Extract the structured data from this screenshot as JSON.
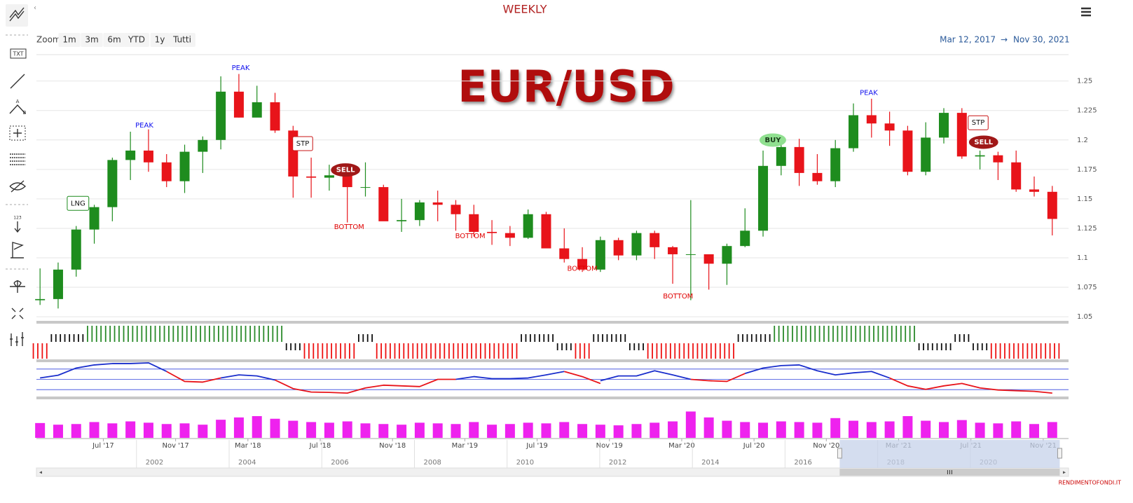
{
  "header": {
    "title": "WEEKLY",
    "zoom_label": "Zoom",
    "zoom_buttons": [
      "1m",
      "3m",
      "6m",
      "YTD",
      "1y",
      "Tutti"
    ],
    "date_from": "Mar 12, 2017",
    "arrow": "→",
    "date_to": "Nov 30, 2021"
  },
  "toolbar": {
    "collapse": "‹",
    "txt": "TXT",
    "num": "123",
    "a": "A",
    "b": "B"
  },
  "watermark": "EUR/USD",
  "footer": "RENDIMENTOFONDI.IT",
  "chart_data": [
    {
      "type": "candlestick",
      "up_color": "#1e8c1e",
      "down_color": "#e8141a",
      "grid": true,
      "xlim": [
        0.3,
        57.4
      ],
      "ylim": [
        1.0465,
        1.2724
      ],
      "yticks": [
        1.05,
        1.075,
        1.1,
        1.125,
        1.15,
        1.175,
        1.2,
        1.225,
        1.25
      ],
      "xticks": [
        {
          "value": 4,
          "label": "Jul '17"
        },
        {
          "value": 8,
          "label": "Nov '17"
        },
        {
          "value": 12,
          "label": "Mar '18"
        },
        {
          "value": 16,
          "label": "Jul '18"
        },
        {
          "value": 20,
          "label": "Nov '18"
        },
        {
          "value": 24,
          "label": "Mar '19"
        },
        {
          "value": 28,
          "label": "Jul '19"
        },
        {
          "value": 32,
          "label": "Nov '19"
        },
        {
          "value": 36,
          "label": "Mar '20"
        },
        {
          "value": 40,
          "label": "Jul '20"
        },
        {
          "value": 44,
          "label": "Nov '20"
        },
        {
          "value": 48,
          "label": "Mar '21"
        },
        {
          "value": 52,
          "label": "Jul '21"
        },
        {
          "value": 56,
          "label": "Nov '21"
        }
      ],
      "open": [
        1.064,
        1.065,
        1.09,
        1.124,
        1.143,
        1.183,
        1.191,
        1.181,
        1.165,
        1.19,
        1.2,
        1.241,
        1.219,
        1.232,
        1.208,
        1.169,
        1.168,
        1.17,
        1.16,
        1.16,
        1.131,
        1.132,
        1.147,
        1.145,
        1.137,
        1.122,
        1.121,
        1.117,
        1.137,
        1.108,
        1.099,
        1.09,
        1.115,
        1.102,
        1.121,
        1.109,
        1.103,
        1.103,
        1.095,
        1.11,
        1.123,
        1.178,
        1.194,
        1.172,
        1.165,
        1.193,
        1.221,
        1.214,
        1.208,
        1.173,
        1.202,
        1.223,
        1.186,
        1.187,
        1.181,
        1.158,
        1.156
      ],
      "high": [
        1.091,
        1.096,
        1.127,
        1.145,
        1.185,
        1.207,
        1.209,
        1.188,
        1.196,
        1.203,
        1.254,
        1.256,
        1.246,
        1.24,
        1.212,
        1.185,
        1.179,
        1.173,
        1.181,
        1.162,
        1.15,
        1.149,
        1.157,
        1.149,
        1.145,
        1.132,
        1.127,
        1.141,
        1.139,
        1.125,
        1.109,
        1.118,
        1.117,
        1.123,
        1.123,
        1.11,
        1.149,
        1.102,
        1.112,
        1.142,
        1.191,
        1.202,
        1.201,
        1.188,
        1.2,
        1.231,
        1.235,
        1.224,
        1.212,
        1.215,
        1.227,
        1.227,
        1.191,
        1.19,
        1.191,
        1.169,
        1.161
      ],
      "low": [
        1.06,
        1.057,
        1.084,
        1.112,
        1.131,
        1.166,
        1.173,
        1.16,
        1.155,
        1.172,
        1.192,
        1.219,
        1.221,
        1.206,
        1.151,
        1.151,
        1.157,
        1.13,
        1.152,
        1.132,
        1.122,
        1.127,
        1.131,
        1.123,
        1.118,
        1.111,
        1.11,
        1.116,
        1.11,
        1.096,
        1.088,
        1.088,
        1.098,
        1.098,
        1.099,
        1.078,
        1.064,
        1.073,
        1.077,
        1.109,
        1.118,
        1.17,
        1.161,
        1.162,
        1.16,
        1.19,
        1.202,
        1.195,
        1.17,
        1.17,
        1.197,
        1.184,
        1.175,
        1.166,
        1.156,
        1.152,
        1.119
      ],
      "close": [
        1.065,
        1.09,
        1.124,
        1.143,
        1.183,
        1.191,
        1.181,
        1.165,
        1.19,
        1.2,
        1.241,
        1.219,
        1.232,
        1.208,
        1.169,
        1.168,
        1.17,
        1.16,
        1.16,
        1.131,
        1.132,
        1.147,
        1.145,
        1.137,
        1.122,
        1.121,
        1.117,
        1.137,
        1.108,
        1.099,
        1.09,
        1.115,
        1.102,
        1.121,
        1.109,
        1.103,
        1.103,
        1.095,
        1.11,
        1.123,
        1.178,
        1.194,
        1.172,
        1.165,
        1.193,
        1.221,
        1.214,
        1.208,
        1.173,
        1.202,
        1.223,
        1.186,
        1.187,
        1.181,
        1.158,
        1.156,
        1.133
      ],
      "annotations": [
        {
          "text": "PEAK",
          "x": 11.6,
          "y": 1.2612,
          "kind": "peak"
        },
        {
          "text": "PEAK",
          "x": 6.27,
          "y": 1.2123,
          "kind": "peak"
        },
        {
          "text": "PEAK",
          "x": 46.35,
          "y": 1.24,
          "kind": "peak"
        },
        {
          "text": "LNG",
          "x": 2.6,
          "y": 1.1462,
          "kind": "box-long"
        },
        {
          "text": "STP",
          "x": 15.03,
          "y": 1.1969,
          "kind": "box-stop"
        },
        {
          "text": "SELL",
          "x": 17.4,
          "y": 1.1745,
          "kind": "badge-sell"
        },
        {
          "text": "BOTTOM",
          "x": 17.6,
          "y": 1.1262,
          "kind": "bottom"
        },
        {
          "text": "BOTTOM",
          "x": 24.3,
          "y": 1.1185,
          "kind": "bottom"
        },
        {
          "text": "BOTTOM",
          "x": 30.5,
          "y": 1.0908,
          "kind": "bottom"
        },
        {
          "text": "BOTTOM",
          "x": 35.8,
          "y": 1.0672,
          "kind": "bottom"
        },
        {
          "text": "BUY",
          "x": 41.04,
          "y": 1.1999,
          "kind": "badge-buy"
        },
        {
          "text": "STP",
          "x": 52.4,
          "y": 1.2146,
          "kind": "box-stop"
        },
        {
          "text": "SELL",
          "x": 52.7,
          "y": 1.1981,
          "kind": "badge-sell"
        }
      ]
    },
    {
      "type": "signal",
      "xlim": [
        0.3,
        57.4
      ],
      "up_color": "#2a8a2a",
      "neutral_color": "#111111",
      "down_color": "#ee1111",
      "values": [
        -2,
        1,
        1,
        2,
        2,
        2,
        2,
        2,
        2,
        2,
        2,
        2,
        2,
        2,
        -1,
        -2,
        -2,
        -2,
        1,
        -2,
        -2,
        -2,
        -2,
        -2,
        -2,
        -2,
        -2,
        1,
        1,
        -1,
        -2,
        1,
        1,
        -1,
        -2,
        -2,
        -2,
        -2,
        -2,
        1,
        1,
        2,
        2,
        2,
        2,
        2,
        2,
        2,
        2,
        -1,
        -1,
        1,
        -1,
        -2,
        -2,
        -2,
        -2
      ]
    },
    {
      "type": "line",
      "xlim": [
        0.3,
        57.4
      ],
      "ylim": [
        0,
        100
      ],
      "levels": [
        20,
        50,
        80
      ],
      "level_color": "#3344dd",
      "series": [
        {
          "color": "#1a2ecc",
          "values": [
            54,
            62,
            83,
            92,
            96,
            96,
            98,
            73,
            null,
            null,
            54,
            63,
            60,
            48,
            null,
            null,
            null,
            null,
            null,
            null,
            null,
            null,
            null,
            50,
            58,
            52,
            52,
            54,
            63,
            73,
            null,
            46,
            60,
            60,
            75,
            63,
            50,
            null,
            null,
            67,
            83,
            90,
            92,
            75,
            63,
            69,
            73,
            54,
            null,
            null,
            null,
            null,
            null,
            null,
            null,
            null,
            null
          ]
        },
        {
          "color": "#e8141a",
          "values": [
            null,
            null,
            null,
            null,
            null,
            null,
            null,
            73,
            44,
            42,
            54,
            null,
            null,
            48,
            23,
            13,
            12,
            10,
            25,
            33,
            31,
            29,
            50,
            50,
            null,
            null,
            null,
            null,
            null,
            73,
            58,
            38,
            null,
            null,
            null,
            null,
            50,
            46,
            44,
            67,
            null,
            null,
            null,
            null,
            null,
            null,
            null,
            54,
            31,
            21,
            31,
            38,
            25,
            19,
            17,
            15,
            10
          ]
        }
      ]
    },
    {
      "type": "bar",
      "xlim": [
        0.3,
        57.4
      ],
      "ylim": [
        0,
        100
      ],
      "color": "#ee22ee",
      "values": [
        45,
        40,
        42,
        48,
        44,
        50,
        46,
        42,
        44,
        40,
        55,
        62,
        66,
        58,
        52,
        48,
        46,
        50,
        44,
        42,
        40,
        46,
        44,
        42,
        48,
        40,
        42,
        46,
        44,
        48,
        42,
        40,
        38,
        42,
        46,
        50,
        80,
        62,
        52,
        48,
        46,
        50,
        48,
        46,
        60,
        52,
        48,
        50,
        66,
        52,
        48,
        54,
        46,
        44,
        50,
        42,
        48
      ]
    },
    {
      "type": "navigator",
      "xlim": [
        1999.84,
        2022.12
      ],
      "xticks": [
        2002,
        2004,
        2006,
        2008,
        2010,
        2012,
        2014,
        2016,
        2018,
        2020
      ],
      "range": [
        2017.18,
        2021.93
      ]
    }
  ]
}
